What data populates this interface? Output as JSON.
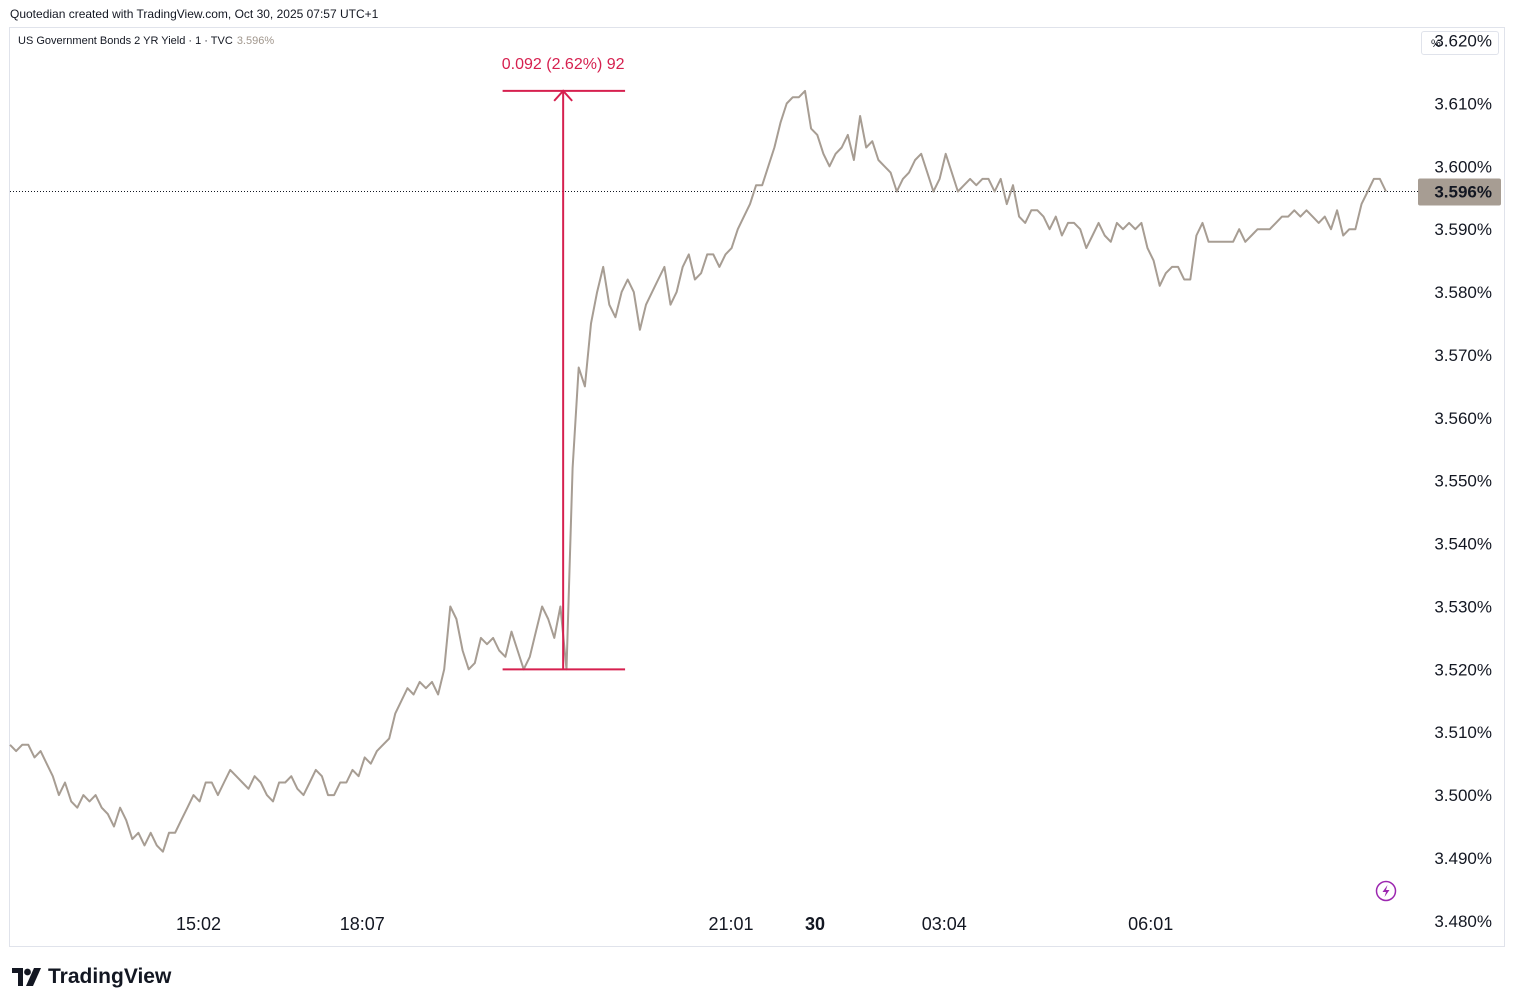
{
  "header": {
    "text": "Quotedian created with TradingView.com, Oct 30, 2025 07:57 UTC+1"
  },
  "legend": {
    "symbol": "US Government Bonds 2 YR Yield · 1 · TVC",
    "last": "3.596%"
  },
  "price_scale": {
    "unit": "%"
  },
  "brand": {
    "name": "TradingView"
  },
  "colors": {
    "line": "#a79d93",
    "measure": "#d6204f",
    "tag": "#a79d93",
    "flash": "#9c27b0"
  },
  "chart_data": {
    "type": "line",
    "ylim": [
      3.476,
      3.622
    ],
    "y_ticks": [
      "3.620%",
      "3.610%",
      "3.600%",
      "3.590%",
      "3.580%",
      "3.570%",
      "3.560%",
      "3.550%",
      "3.540%",
      "3.530%",
      "3.520%",
      "3.510%",
      "3.500%",
      "3.490%",
      "3.480%"
    ],
    "y_tick_values": [
      3.62,
      3.61,
      3.6,
      3.59,
      3.58,
      3.57,
      3.56,
      3.55,
      3.54,
      3.53,
      3.52,
      3.51,
      3.5,
      3.49,
      3.48
    ],
    "x_ticks": [
      {
        "label": "15:02",
        "t": 0.137,
        "bold": false
      },
      {
        "label": "18:07",
        "t": 0.256,
        "bold": false
      },
      {
        "label": "21:01",
        "t": 0.524,
        "bold": false
      },
      {
        "label": "30",
        "t": 0.585,
        "bold": true
      },
      {
        "label": "03:04",
        "t": 0.679,
        "bold": false
      },
      {
        "label": "06:01",
        "t": 0.829,
        "bold": false
      }
    ],
    "last_value": 3.596,
    "last_label": "3.596%",
    "measure": {
      "label": "0.092 (2.62%) 92",
      "from": 3.52,
      "to": 3.612,
      "t_start": 0.358,
      "t_mid": 0.402,
      "t_end": 0.447
    },
    "series": [
      {
        "values": [
          3.508,
          3.507,
          3.508,
          3.508,
          3.506,
          3.507,
          3.505,
          3.503,
          3.5,
          3.502,
          3.499,
          3.498,
          3.5,
          3.499,
          3.5,
          3.498,
          3.497,
          3.495,
          3.498,
          3.496,
          3.493,
          3.494,
          3.492,
          3.494,
          3.492,
          3.491,
          3.494,
          3.494,
          3.496,
          3.498,
          3.5,
          3.499,
          3.502,
          3.502,
          3.5,
          3.502,
          3.504,
          3.503,
          3.502,
          3.501,
          3.503,
          3.502,
          3.5,
          3.499,
          3.502,
          3.502,
          3.503,
          3.501,
          3.5,
          3.502,
          3.504,
          3.503,
          3.5,
          3.5,
          3.502,
          3.502,
          3.504,
          3.503,
          3.506,
          3.505,
          3.507,
          3.508,
          3.509,
          3.513,
          3.515,
          3.517,
          3.516,
          3.518,
          3.517,
          3.518,
          3.516,
          3.52,
          3.53,
          3.528,
          3.523,
          3.52,
          3.521,
          3.525,
          3.524,
          3.525,
          3.523,
          3.522,
          3.526,
          3.523,
          3.52,
          3.522,
          3.526,
          3.53,
          3.528,
          3.525,
          3.53,
          3.52,
          3.552,
          3.568,
          3.565,
          3.575,
          3.58,
          3.584,
          3.578,
          3.576,
          3.58,
          3.582,
          3.58,
          3.574,
          3.578,
          3.58,
          3.582,
          3.584,
          3.578,
          3.58,
          3.584,
          3.586,
          3.582,
          3.583,
          3.586,
          3.586,
          3.584,
          3.586,
          3.587,
          3.59,
          3.592,
          3.594,
          3.597,
          3.597,
          3.6,
          3.603,
          3.607,
          3.61,
          3.611,
          3.611,
          3.612,
          3.606,
          3.605,
          3.602,
          3.6,
          3.602,
          3.603,
          3.605,
          3.601,
          3.608,
          3.603,
          3.604,
          3.601,
          3.6,
          3.599,
          3.596,
          3.598,
          3.599,
          3.601,
          3.602,
          3.599,
          3.596,
          3.598,
          3.602,
          3.599,
          3.596,
          3.597,
          3.598,
          3.597,
          3.598,
          3.598,
          3.596,
          3.598,
          3.594,
          3.597,
          3.592,
          3.591,
          3.593,
          3.593,
          3.592,
          3.59,
          3.592,
          3.589,
          3.591,
          3.591,
          3.59,
          3.587,
          3.589,
          3.591,
          3.589,
          3.588,
          3.591,
          3.59,
          3.591,
          3.59,
          3.591,
          3.587,
          3.585,
          3.581,
          3.583,
          3.584,
          3.584,
          3.582,
          3.582,
          3.589,
          3.591,
          3.588,
          3.588,
          3.588,
          3.588,
          3.588,
          3.59,
          3.588,
          3.589,
          3.59,
          3.59,
          3.59,
          3.591,
          3.592,
          3.592,
          3.593,
          3.592,
          3.593,
          3.592,
          3.591,
          3.592,
          3.59,
          3.593,
          3.589,
          3.59,
          3.59,
          3.594,
          3.596,
          3.598,
          3.598,
          3.596
        ]
      }
    ]
  }
}
